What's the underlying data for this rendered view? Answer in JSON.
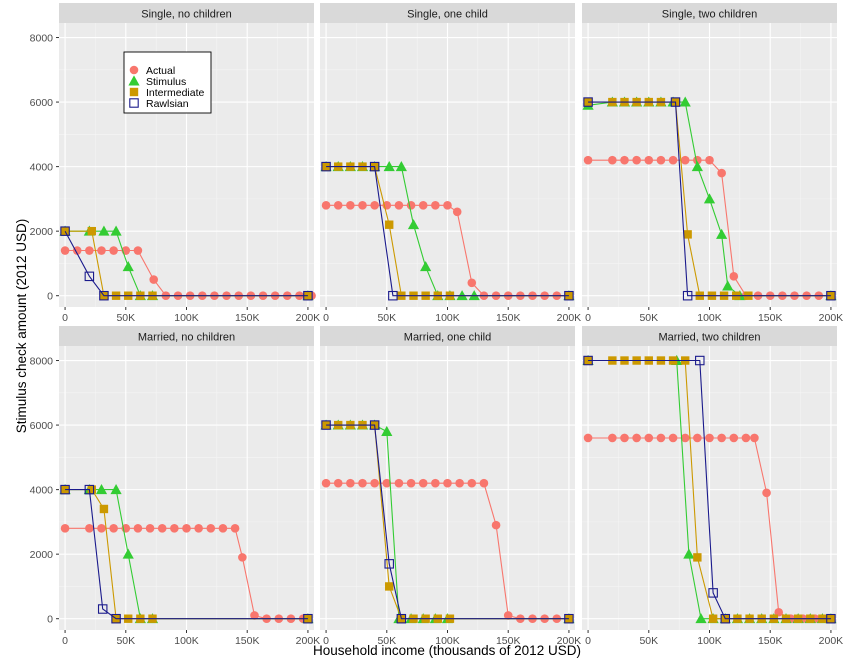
{
  "chart_data": {
    "type": "line",
    "xlabel": "Household income (thousands of 2012 USD)",
    "ylabel": "Stimulus check amount (2012 USD)",
    "x_ticks": [
      0,
      50,
      100,
      150,
      200
    ],
    "x_tick_labels": [
      "0",
      "50K",
      "100K",
      "150K",
      "200K"
    ],
    "y_ticks": [
      0,
      2000,
      4000,
      6000,
      8000
    ],
    "y_tick_labels": [
      "0",
      "2000",
      "4000",
      "6000",
      "8000"
    ],
    "xlim": [
      -5,
      205
    ],
    "ylim": [
      -350,
      8450
    ],
    "grid": true,
    "legend_position": "inside top-left of first panel",
    "legend": [
      {
        "name": "Actual",
        "color": "#F8766D",
        "marker": "circle"
      },
      {
        "name": "Stimulus",
        "color": "#33CC33",
        "marker": "triangle"
      },
      {
        "name": "Intermediate",
        "color": "#CC9900",
        "marker": "square"
      },
      {
        "name": "Rawlsian",
        "color": "#1A1A8C",
        "marker": "open-square"
      }
    ],
    "panels": [
      {
        "title": "Single, no children",
        "series": [
          {
            "name": "Actual",
            "x": [
              0,
              10,
              20,
              30,
              40,
              50,
              60,
              73,
              83,
              93,
              103,
              113,
              123,
              133,
              143,
              153,
              163,
              173,
              183,
              193,
              203
            ],
            "y": [
              1400,
              1400,
              1400,
              1400,
              1400,
              1400,
              1400,
              500,
              0,
              0,
              0,
              0,
              0,
              0,
              0,
              0,
              0,
              0,
              0,
              0,
              0
            ]
          },
          {
            "name": "Stimulus",
            "x": [
              0,
              20,
              32,
              42,
              52,
              62,
              72,
              200
            ],
            "y": [
              2000,
              2000,
              2000,
              2000,
              900,
              0,
              0,
              0
            ]
          },
          {
            "name": "Intermediate",
            "x": [
              0,
              22,
              32,
              42,
              52,
              62,
              72,
              200
            ],
            "y": [
              2000,
              2000,
              0,
              0,
              0,
              0,
              0,
              0
            ]
          },
          {
            "name": "Rawlsian",
            "x": [
              0,
              20,
              32,
              200
            ],
            "y": [
              2000,
              600,
              0,
              0
            ]
          }
        ]
      },
      {
        "title": "Single, one child",
        "series": [
          {
            "name": "Actual",
            "x": [
              0,
              10,
              20,
              30,
              40,
              50,
              60,
              70,
              80,
              90,
              100,
              108,
              120,
              130,
              140,
              150,
              160,
              170,
              180,
              190,
              200
            ],
            "y": [
              2800,
              2800,
              2800,
              2800,
              2800,
              2800,
              2800,
              2800,
              2800,
              2800,
              2800,
              2600,
              400,
              0,
              0,
              0,
              0,
              0,
              0,
              0,
              0
            ]
          },
          {
            "name": "Stimulus",
            "x": [
              0,
              10,
              20,
              30,
              40,
              52,
              62,
              72,
              82,
              92,
              102,
              112,
              122,
              200
            ],
            "y": [
              4000,
              4000,
              4000,
              4000,
              4000,
              4000,
              4000,
              2200,
              900,
              0,
              0,
              0,
              0,
              0
            ]
          },
          {
            "name": "Intermediate",
            "x": [
              0,
              10,
              20,
              30,
              40,
              52,
              62,
              72,
              82,
              92,
              102,
              200
            ],
            "y": [
              4000,
              4000,
              4000,
              4000,
              4000,
              2200,
              0,
              0,
              0,
              0,
              0,
              0
            ]
          },
          {
            "name": "Rawlsian",
            "x": [
              0,
              40,
              55,
              200
            ],
            "y": [
              4000,
              4000,
              0,
              0
            ]
          }
        ]
      },
      {
        "title": "Single, two children",
        "series": [
          {
            "name": "Actual",
            "x": [
              0,
              20,
              30,
              40,
              50,
              60,
              70,
              80,
              90,
              100,
              110,
              120,
              130,
              140,
              150,
              160,
              170,
              180,
              190,
              200
            ],
            "y": [
              4200,
              4200,
              4200,
              4200,
              4200,
              4200,
              4200,
              4200,
              4200,
              4200,
              3800,
              600,
              0,
              0,
              0,
              0,
              0,
              0,
              0,
              0
            ]
          },
          {
            "name": "Stimulus",
            "x": [
              0,
              20,
              30,
              40,
              50,
              60,
              70,
              80,
              90,
              100,
              110,
              115,
              125,
              200
            ],
            "y": [
              5900,
              6000,
              6000,
              6000,
              6000,
              6000,
              6000,
              6000,
              4000,
              3000,
              1900,
              300,
              0,
              0
            ]
          },
          {
            "name": "Intermediate",
            "x": [
              0,
              20,
              30,
              40,
              50,
              60,
              72,
              82,
              92,
              102,
              112,
              122,
              132,
              200
            ],
            "y": [
              6000,
              6000,
              6000,
              6000,
              6000,
              6000,
              6000,
              1900,
              0,
              0,
              0,
              0,
              0,
              0
            ]
          },
          {
            "name": "Rawlsian",
            "x": [
              0,
              72,
              82,
              200
            ],
            "y": [
              6000,
              6000,
              0,
              0
            ]
          }
        ]
      },
      {
        "title": "Married, no children",
        "series": [
          {
            "name": "Actual",
            "x": [
              0,
              20,
              30,
              40,
              50,
              60,
              70,
              80,
              90,
              100,
              110,
              120,
              130,
              140,
              146,
              156,
              166,
              176,
              186,
              196,
              200
            ],
            "y": [
              2800,
              2800,
              2800,
              2800,
              2800,
              2800,
              2800,
              2800,
              2800,
              2800,
              2800,
              2800,
              2800,
              2800,
              1900,
              100,
              0,
              0,
              0,
              0,
              0
            ]
          },
          {
            "name": "Stimulus",
            "x": [
              0,
              20,
              30,
              42,
              52,
              62,
              72,
              200
            ],
            "y": [
              4000,
              4000,
              4000,
              4000,
              2000,
              0,
              0,
              0
            ]
          },
          {
            "name": "Intermediate",
            "x": [
              0,
              22,
              32,
              42,
              52,
              62,
              72,
              200
            ],
            "y": [
              4000,
              4000,
              3400,
              0,
              0,
              0,
              0,
              0
            ]
          },
          {
            "name": "Rawlsian",
            "x": [
              0,
              20,
              31,
              42,
              200
            ],
            "y": [
              4000,
              4000,
              300,
              0,
              0
            ]
          }
        ]
      },
      {
        "title": "Married, one child",
        "series": [
          {
            "name": "Actual",
            "x": [
              0,
              10,
              20,
              30,
              40,
              50,
              60,
              70,
              80,
              90,
              100,
              110,
              120,
              130,
              140,
              150,
              160,
              170,
              180,
              190,
              200
            ],
            "y": [
              4200,
              4200,
              4200,
              4200,
              4200,
              4200,
              4200,
              4200,
              4200,
              4200,
              4200,
              4200,
              4200,
              4200,
              2900,
              100,
              0,
              0,
              0,
              0,
              0
            ]
          },
          {
            "name": "Stimulus",
            "x": [
              0,
              10,
              20,
              30,
              40,
              50,
              60,
              70,
              80,
              90,
              100,
              200
            ],
            "y": [
              6000,
              6000,
              6000,
              6000,
              6000,
              5800,
              0,
              0,
              0,
              0,
              0,
              0
            ]
          },
          {
            "name": "Intermediate",
            "x": [
              0,
              10,
              20,
              30,
              40,
              52,
              62,
              72,
              82,
              92,
              102,
              200
            ],
            "y": [
              6000,
              6000,
              6000,
              6000,
              6000,
              1000,
              0,
              0,
              0,
              0,
              0,
              0
            ]
          },
          {
            "name": "Rawlsian",
            "x": [
              0,
              40,
              52,
              62,
              200
            ],
            "y": [
              6000,
              6000,
              1700,
              0,
              0
            ]
          }
        ]
      },
      {
        "title": "Married, two children",
        "series": [
          {
            "name": "Actual",
            "x": [
              0,
              20,
              30,
              40,
              50,
              60,
              70,
              80,
              90,
              100,
              110,
              120,
              130,
              137,
              147,
              157,
              167,
              177,
              187,
              200
            ],
            "y": [
              5600,
              5600,
              5600,
              5600,
              5600,
              5600,
              5600,
              5600,
              5600,
              5600,
              5600,
              5600,
              5600,
              5600,
              3900,
              200,
              0,
              0,
              0,
              0
            ]
          },
          {
            "name": "Stimulus",
            "x": [
              0,
              73,
              83,
              93,
              103,
              113,
              123,
              133,
              143,
              153,
              163,
              173,
              183,
              193,
              200
            ],
            "y": [
              8000,
              8000,
              2000,
              0,
              0,
              0,
              0,
              0,
              0,
              0,
              0,
              0,
              0,
              0,
              0
            ]
          },
          {
            "name": "Intermediate",
            "x": [
              0,
              20,
              30,
              40,
              50,
              60,
              70,
              80,
              90,
              103,
              113,
              123,
              133,
              143,
              153,
              163,
              173,
              183,
              193,
              200
            ],
            "y": [
              8000,
              8000,
              8000,
              8000,
              8000,
              8000,
              8000,
              8000,
              1900,
              0,
              0,
              0,
              0,
              0,
              0,
              0,
              0,
              0,
              0,
              0
            ]
          },
          {
            "name": "Rawlsian",
            "x": [
              0,
              92,
              103,
              113,
              200
            ],
            "y": [
              8000,
              8000,
              800,
              0,
              0
            ]
          }
        ]
      }
    ]
  }
}
